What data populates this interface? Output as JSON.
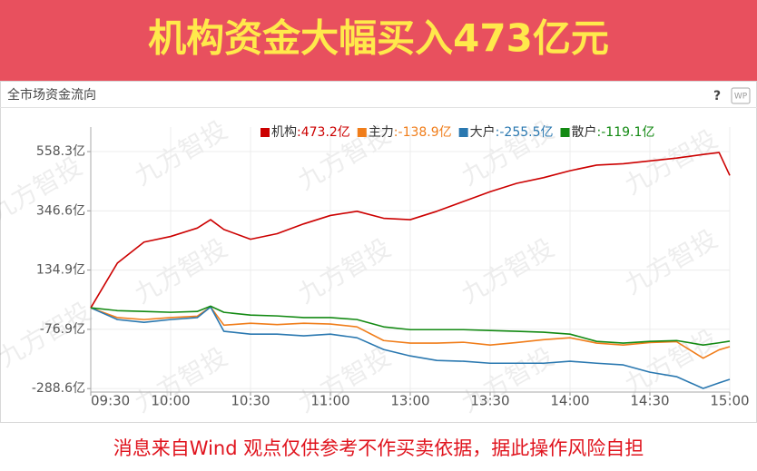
{
  "banner": {
    "title": "机构资金大幅买入473亿元"
  },
  "panel": {
    "title": "全市场资金流向",
    "help": "?",
    "icon_label": "WP"
  },
  "watermark": "九方智投",
  "footer": {
    "text": "消息来自Wind  观点仅供参考不作买卖依据，据此操作风险自担"
  },
  "chart_data": {
    "type": "line",
    "x": [
      0,
      10,
      20,
      30,
      40,
      45,
      50,
      60,
      70,
      80,
      90,
      100,
      110,
      120,
      130,
      140,
      150,
      160,
      170,
      180,
      190,
      200,
      210,
      220,
      230,
      236,
      240
    ],
    "xlim": [
      0,
      240
    ],
    "xticks": [
      {
        "value": 0,
        "label": "09:30"
      },
      {
        "value": 30,
        "label": "10:00"
      },
      {
        "value": 60,
        "label": "10:30"
      },
      {
        "value": 90,
        "label": "11:00"
      },
      {
        "value": 120,
        "label": "13:00"
      },
      {
        "value": 150,
        "label": "13:30"
      },
      {
        "value": 180,
        "label": "14:00"
      },
      {
        "value": 210,
        "label": "14:30"
      },
      {
        "value": 240,
        "label": "15:00"
      }
    ],
    "ylim": [
      -301,
      646
    ],
    "yticks": [
      {
        "value": 558.3,
        "label": "558.3亿"
      },
      {
        "value": 346.6,
        "label": "346.6亿"
      },
      {
        "value": 134.9,
        "label": "134.9亿"
      },
      {
        "value": -76.9,
        "label": "-76.9亿"
      },
      {
        "value": -288.6,
        "label": "-288.6亿"
      }
    ],
    "grid": true,
    "series": [
      {
        "name": "机构",
        "end_label": ":473.2亿",
        "color": "#cc0000",
        "values": [
          0,
          160,
          235,
          255,
          285,
          315,
          280,
          245,
          265,
          300,
          330,
          345,
          320,
          315,
          345,
          380,
          415,
          445,
          465,
          490,
          510,
          515,
          525,
          535,
          548,
          555,
          473.2
        ]
      },
      {
        "name": "主力",
        "end_label": ":-138.9亿",
        "color": "#f07d1a",
        "values": [
          0,
          -35,
          -42,
          -35,
          -30,
          3,
          -62,
          -55,
          -60,
          -55,
          -58,
          -68,
          -117,
          -126,
          -126,
          -123,
          -133,
          -124,
          -114,
          -107,
          -126,
          -133,
          -124,
          -121,
          -180,
          -150,
          -138.9
        ]
      },
      {
        "name": "大户",
        "end_label": ":-255.5亿",
        "color": "#2a78b0",
        "values": [
          0,
          -42,
          -52,
          -42,
          -35,
          3,
          -84,
          -94,
          -94,
          -100,
          -94,
          -107,
          -149,
          -172,
          -188,
          -191,
          -198,
          -198,
          -198,
          -191,
          -198,
          -204,
          -230,
          -246,
          -288,
          -268,
          -255.5
        ]
      },
      {
        "name": "散户",
        "end_label": ":-119.1亿",
        "color": "#138a13",
        "values": [
          0,
          -10,
          -13,
          -16,
          -13,
          6,
          -16,
          -26,
          -29,
          -35,
          -35,
          -42,
          -68,
          -78,
          -78,
          -78,
          -81,
          -84,
          -87,
          -94,
          -120,
          -126,
          -120,
          -117,
          -133,
          -125,
          -119.1
        ]
      }
    ]
  }
}
